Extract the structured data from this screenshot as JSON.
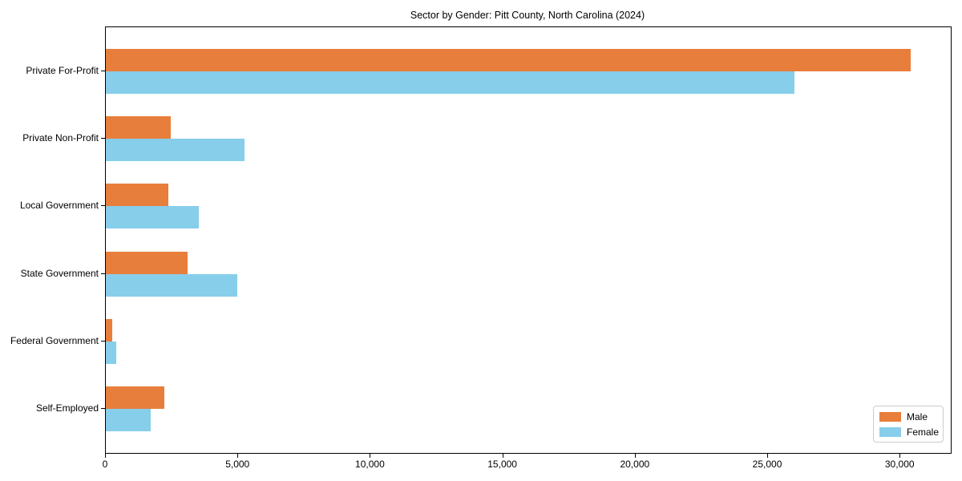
{
  "title": "Sector by Gender: Pitt County, North Carolina (2024)",
  "colors": {
    "male": "#E87E3B",
    "female": "#87CEEB",
    "axis": "#000000",
    "legend_border": "#cccccc",
    "background": "#ffffff"
  },
  "legend": {
    "position": "lower-right",
    "items": [
      {
        "label": "Male",
        "color": "#E87E3B"
      },
      {
        "label": "Female",
        "color": "#87CEEB"
      }
    ]
  },
  "chart_data": {
    "type": "bar",
    "orientation": "horizontal",
    "title": "Sector by Gender: Pitt County, North Carolina (2024)",
    "categories": [
      "Private For-Profit",
      "Private Non-Profit",
      "Local Government",
      "State Government",
      "Federal Government",
      "Self-Employed"
    ],
    "series": [
      {
        "name": "Male",
        "color": "#E87E3B",
        "values": [
          30400,
          2450,
          2350,
          3100,
          250,
          2200
        ]
      },
      {
        "name": "Female",
        "color": "#87CEEB",
        "values": [
          26000,
          5250,
          3500,
          4950,
          400,
          1700
        ]
      }
    ],
    "xlabel": "",
    "ylabel": "",
    "xlim": [
      0,
      31900
    ],
    "xticks": [
      0,
      5000,
      10000,
      15000,
      20000,
      25000,
      30000
    ],
    "xtick_labels": [
      "0",
      "5,000",
      "10,000",
      "15,000",
      "20,000",
      "25,000",
      "30,000"
    ],
    "grid": false,
    "legend_position": "lower right"
  }
}
